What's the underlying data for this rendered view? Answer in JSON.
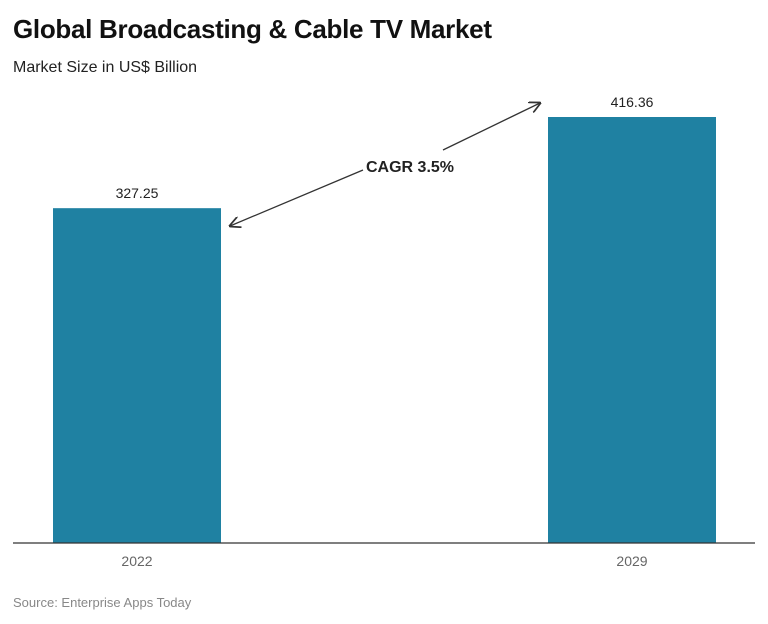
{
  "chart_data": {
    "type": "bar",
    "title": "Global Broadcasting & Cable TV Market",
    "subtitle": "Market Size in US$ Billion",
    "categories": [
      "2022",
      "2029"
    ],
    "values": [
      327.25,
      416.36
    ],
    "value_labels": [
      "327.25",
      "416.36"
    ],
    "ylim": [
      0,
      430
    ],
    "grid": false,
    "bar_color": "#1f81a2",
    "annotation": "CAGR 3.5%",
    "source": "Source: Enterprise Apps Today"
  }
}
